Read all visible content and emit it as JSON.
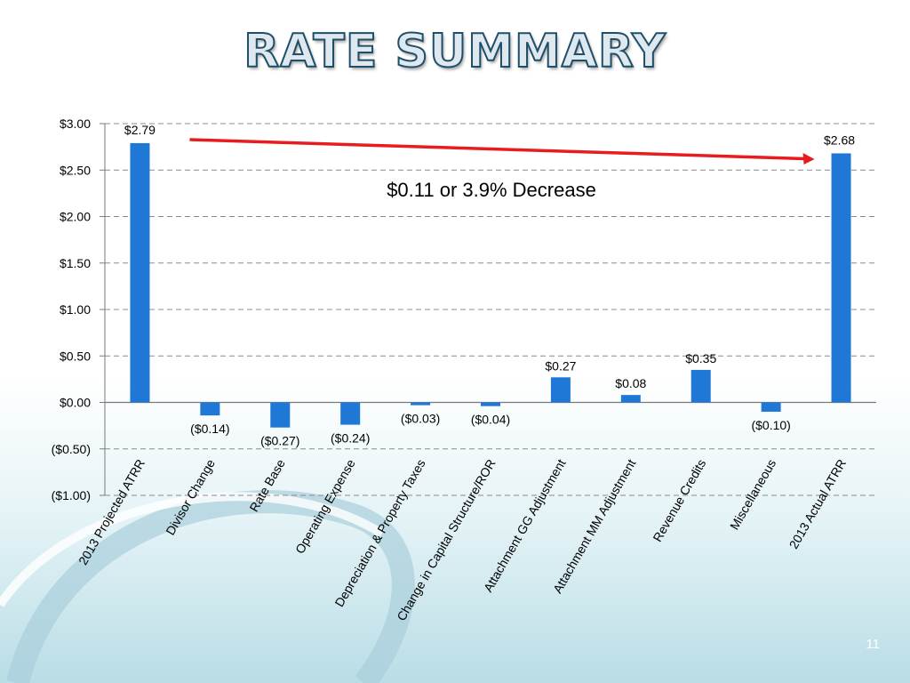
{
  "slide": {
    "title": "RATE SUMMARY",
    "page_number": "11"
  },
  "colors": {
    "bar": "#1f78d6",
    "arrow": "#e81c1c",
    "grid": "#8c8c8c",
    "title_stroke": "#1e4f6a"
  },
  "chart_data": {
    "type": "bar",
    "categories": [
      "2013 Projected ATRR",
      "Divisor Change",
      "Rate Base",
      "Operating Expense",
      "Depreciation & Property Taxes",
      "Change in Capital Structure/ROR",
      "Attachment GG Adjustment",
      "Attachment MM Adjustment",
      "Revenue Credits",
      "Miscellaneous",
      "2013 Actual ATRR"
    ],
    "values": [
      2.79,
      -0.14,
      -0.27,
      -0.24,
      -0.03,
      -0.04,
      0.27,
      0.08,
      0.35,
      -0.1,
      2.68
    ],
    "data_labels": [
      "$2.79",
      "($0.14)",
      "($0.27)",
      "($0.24)",
      "($0.03)",
      "($0.04)",
      "$0.27",
      "$0.08",
      "$0.35",
      "($0.10)",
      "$2.68"
    ],
    "ylim": [
      -1.0,
      3.0
    ],
    "y_ticks": [
      3.0,
      2.5,
      2.0,
      1.5,
      1.0,
      0.5,
      0.0,
      -0.5,
      -1.0
    ],
    "y_tick_labels": [
      "$3.00",
      "$2.50",
      "$2.00",
      "$1.50",
      "$1.00",
      "$0.50",
      "$0.00",
      "($0.50)",
      "($1.00)"
    ],
    "grid": true,
    "annotation": "$0.11 or 3.9% Decrease",
    "xlabel": "",
    "ylabel": ""
  }
}
